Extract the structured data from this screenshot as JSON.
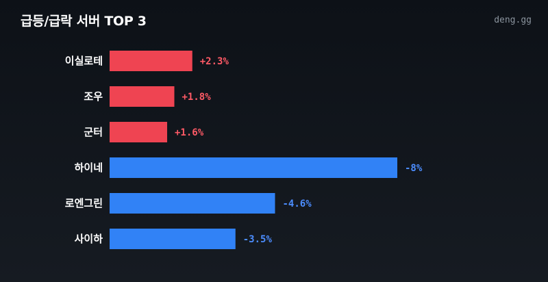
{
  "header": {
    "title": "급등/급락 서버 TOP 3",
    "brand": "deng.gg"
  },
  "colors": {
    "up": "#ef4452",
    "down": "#3182f6",
    "up_text": "#ff5a66",
    "down_text": "#4c8dff"
  },
  "chart_data": {
    "type": "bar",
    "orientation": "horizontal",
    "title": "",
    "categories": [
      "이실로테",
      "조우",
      "군터",
      "하이네",
      "로엔그린",
      "사이하"
    ],
    "values": [
      2.3,
      1.8,
      1.6,
      -8,
      -4.6,
      -3.5
    ],
    "value_labels": [
      "+2.3%",
      "+1.8%",
      "+1.6%",
      "-8%",
      "-4.6%",
      "-3.5%"
    ],
    "xlabel": "",
    "ylabel": "",
    "xlim": [
      0,
      8
    ],
    "grid": false,
    "legend": "none"
  }
}
